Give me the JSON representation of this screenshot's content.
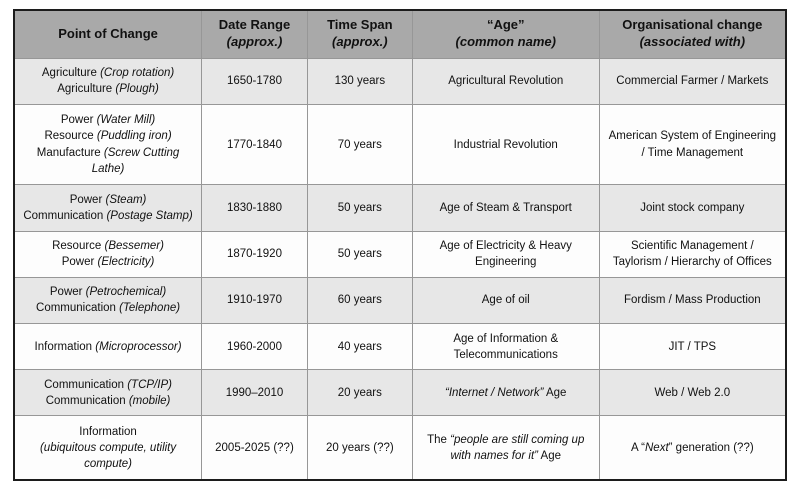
{
  "colors": {
    "header_bg": "#a9a9a9",
    "row_gray": "#e7e7e7",
    "row_white": "#fdfdfd",
    "outer_border": "#1c1c1c",
    "inner_border": "#979797",
    "text": "#111111"
  },
  "chart_data": {
    "type": "table",
    "title": "",
    "columns": [
      "Point of Change",
      "Date Range (approx.)",
      "Time Span (approx.)",
      "“Age” (common name)",
      "Organisational change (associated with)"
    ],
    "rows": [
      [
        "Agriculture (Crop rotation)\nAgriculture (Plough)",
        "1650-1780",
        "130 years",
        "Agricultural Revolution",
        "Commercial Farmer / Markets"
      ],
      [
        "Power (Water Mill)\nResource (Puddling iron)\nManufacture (Screw Cutting Lathe)",
        "1770-1840",
        "70 years",
        "Industrial Revolution",
        "American System of Engineering / Time Management"
      ],
      [
        "Power (Steam)\nCommunication (Postage Stamp)",
        "1830-1880",
        "50 years",
        "Age of Steam & Transport",
        "Joint stock company"
      ],
      [
        "Resource (Bessemer)\nPower (Electricity)",
        "1870-1920",
        "50 years",
        "Age of Electricity & Heavy Engineering",
        "Scientific Management / Taylorism / Hierarchy of Offices"
      ],
      [
        "Power (Petrochemical)\nCommunication (Telephone)",
        "1910-1970",
        "60 years",
        "Age of oil",
        "Fordism / Mass Production"
      ],
      [
        "Information (Microprocessor)",
        "1960-2000",
        "40 years",
        "Age of Information & Telecommunications",
        "JIT / TPS"
      ],
      [
        "Communication (TCP/IP)\nCommunication (mobile)",
        "1990–2010",
        "20 years",
        "“Internet / Network” Age",
        "Web / Web 2.0"
      ],
      [
        "Information\n(ubiquitous compute, utility compute)",
        "2005-2025 (??)",
        "20 years (??)",
        "The “people are still coming up with names for it” Age",
        "A “Next” generation (??)"
      ]
    ]
  },
  "table": {
    "col_widths_pct": [
      24.3,
      13.7,
      13.6,
      24.2,
      24.2
    ],
    "columns": [
      {
        "label": "Point of Change",
        "sub": ""
      },
      {
        "label": "Date Range",
        "sub": "(approx.)"
      },
      {
        "label": "Time Span",
        "sub": "(approx.)"
      },
      {
        "label": "“Age”",
        "sub": "(common name)"
      },
      {
        "label": "Organisational change",
        "sub": "(associated with)"
      }
    ],
    "rows": [
      {
        "cells": [
          {
            "lines": [
              [
                {
                  "t": "Agriculture ",
                  "i": false
                },
                {
                  "t": "(Crop rotation)",
                  "i": true
                }
              ],
              [
                {
                  "t": "Agriculture ",
                  "i": false
                },
                {
                  "t": "(Plough)",
                  "i": true
                }
              ]
            ]
          },
          {
            "lines": [
              [
                {
                  "t": "1650-1780",
                  "i": false
                }
              ]
            ]
          },
          {
            "lines": [
              [
                {
                  "t": "130 years",
                  "i": false
                }
              ]
            ]
          },
          {
            "lines": [
              [
                {
                  "t": "Agricultural Revolution",
                  "i": false
                }
              ]
            ]
          },
          {
            "lines": [
              [
                {
                  "t": "Commercial Farmer / Markets",
                  "i": false
                }
              ]
            ]
          }
        ]
      },
      {
        "cells": [
          {
            "lines": [
              [
                {
                  "t": "Power ",
                  "i": false
                },
                {
                  "t": "(Water Mill)",
                  "i": true
                }
              ],
              [
                {
                  "t": "Resource ",
                  "i": false
                },
                {
                  "t": "(Puddling iron)",
                  "i": true
                }
              ],
              [
                {
                  "t": "Manufacture ",
                  "i": false
                },
                {
                  "t": "(Screw Cutting Lathe)",
                  "i": true
                }
              ]
            ]
          },
          {
            "lines": [
              [
                {
                  "t": "1770-1840",
                  "i": false
                }
              ]
            ]
          },
          {
            "lines": [
              [
                {
                  "t": "70 years",
                  "i": false
                }
              ]
            ]
          },
          {
            "lines": [
              [
                {
                  "t": "Industrial Revolution",
                  "i": false
                }
              ]
            ]
          },
          {
            "lines": [
              [
                {
                  "t": "American System of Engineering / Time Management",
                  "i": false
                }
              ]
            ]
          }
        ]
      },
      {
        "cells": [
          {
            "lines": [
              [
                {
                  "t": "Power ",
                  "i": false
                },
                {
                  "t": "(Steam)",
                  "i": true
                }
              ],
              [
                {
                  "t": "Communication ",
                  "i": false
                },
                {
                  "t": "(Postage Stamp)",
                  "i": true
                }
              ]
            ]
          },
          {
            "lines": [
              [
                {
                  "t": "1830-1880",
                  "i": false
                }
              ]
            ]
          },
          {
            "lines": [
              [
                {
                  "t": "50 years",
                  "i": false
                }
              ]
            ]
          },
          {
            "lines": [
              [
                {
                  "t": "Age of Steam & Transport",
                  "i": false
                }
              ]
            ]
          },
          {
            "lines": [
              [
                {
                  "t": "Joint stock company",
                  "i": false
                }
              ]
            ]
          }
        ]
      },
      {
        "cells": [
          {
            "lines": [
              [
                {
                  "t": "Resource ",
                  "i": false
                },
                {
                  "t": "(Bessemer)",
                  "i": true
                }
              ],
              [
                {
                  "t": "Power ",
                  "i": false
                },
                {
                  "t": "(Electricity)",
                  "i": true
                }
              ]
            ]
          },
          {
            "lines": [
              [
                {
                  "t": "1870-1920",
                  "i": false
                }
              ]
            ]
          },
          {
            "lines": [
              [
                {
                  "t": "50 years",
                  "i": false
                }
              ]
            ]
          },
          {
            "lines": [
              [
                {
                  "t": "Age of Electricity & Heavy Engineering",
                  "i": false
                }
              ]
            ]
          },
          {
            "lines": [
              [
                {
                  "t": "Scientific Management / Taylorism / Hierarchy of Offices",
                  "i": false
                }
              ]
            ]
          }
        ]
      },
      {
        "cells": [
          {
            "lines": [
              [
                {
                  "t": "Power ",
                  "i": false
                },
                {
                  "t": "(Petrochemical)",
                  "i": true
                }
              ],
              [
                {
                  "t": "Communication ",
                  "i": false
                },
                {
                  "t": "(Telephone)",
                  "i": true
                }
              ]
            ]
          },
          {
            "lines": [
              [
                {
                  "t": "1910-1970",
                  "i": false
                }
              ]
            ]
          },
          {
            "lines": [
              [
                {
                  "t": "60 years",
                  "i": false
                }
              ]
            ]
          },
          {
            "lines": [
              [
                {
                  "t": "Age of oil",
                  "i": false
                }
              ]
            ]
          },
          {
            "lines": [
              [
                {
                  "t": "Fordism / Mass Production",
                  "i": false
                }
              ]
            ]
          }
        ]
      },
      {
        "cells": [
          {
            "lines": [
              [
                {
                  "t": "Information ",
                  "i": false
                },
                {
                  "t": "(Microprocessor)",
                  "i": true
                }
              ]
            ]
          },
          {
            "lines": [
              [
                {
                  "t": "1960-2000",
                  "i": false
                }
              ]
            ]
          },
          {
            "lines": [
              [
                {
                  "t": "40 years",
                  "i": false
                }
              ]
            ]
          },
          {
            "lines": [
              [
                {
                  "t": "Age of Information & Telecommunications",
                  "i": false
                }
              ]
            ]
          },
          {
            "lines": [
              [
                {
                  "t": "JIT / TPS",
                  "i": false
                }
              ]
            ]
          }
        ]
      },
      {
        "cells": [
          {
            "lines": [
              [
                {
                  "t": "Communication ",
                  "i": false
                },
                {
                  "t": "(TCP/IP)",
                  "i": true
                }
              ],
              [
                {
                  "t": "Communication ",
                  "i": false
                },
                {
                  "t": "(mobile)",
                  "i": true
                }
              ]
            ]
          },
          {
            "lines": [
              [
                {
                  "t": "1990–2010",
                  "i": false
                }
              ]
            ]
          },
          {
            "lines": [
              [
                {
                  "t": "20 years",
                  "i": false
                }
              ]
            ]
          },
          {
            "lines": [
              [
                {
                  "t": "“Internet / Network”",
                  "i": true
                },
                {
                  "t": " Age",
                  "i": false
                }
              ]
            ]
          },
          {
            "lines": [
              [
                {
                  "t": "Web / Web 2.0",
                  "i": false
                }
              ]
            ]
          }
        ]
      },
      {
        "cells": [
          {
            "lines": [
              [
                {
                  "t": "Information",
                  "i": false
                }
              ],
              [
                {
                  "t": "(ubiquitous compute, utility compute)",
                  "i": true
                }
              ]
            ]
          },
          {
            "lines": [
              [
                {
                  "t": "2005-2025 (??)",
                  "i": false
                }
              ]
            ]
          },
          {
            "lines": [
              [
                {
                  "t": "20 years (??)",
                  "i": false
                }
              ]
            ]
          },
          {
            "lines": [
              [
                {
                  "t": "The ",
                  "i": false
                },
                {
                  "t": "“people are still coming up with names for it”",
                  "i": true
                },
                {
                  "t": " Age",
                  "i": false
                }
              ]
            ]
          },
          {
            "lines": [
              [
                {
                  "t": "A “",
                  "i": false
                },
                {
                  "t": "Next",
                  "i": true
                },
                {
                  "t": "” generation (??)",
                  "i": false
                }
              ]
            ]
          }
        ]
      }
    ]
  }
}
